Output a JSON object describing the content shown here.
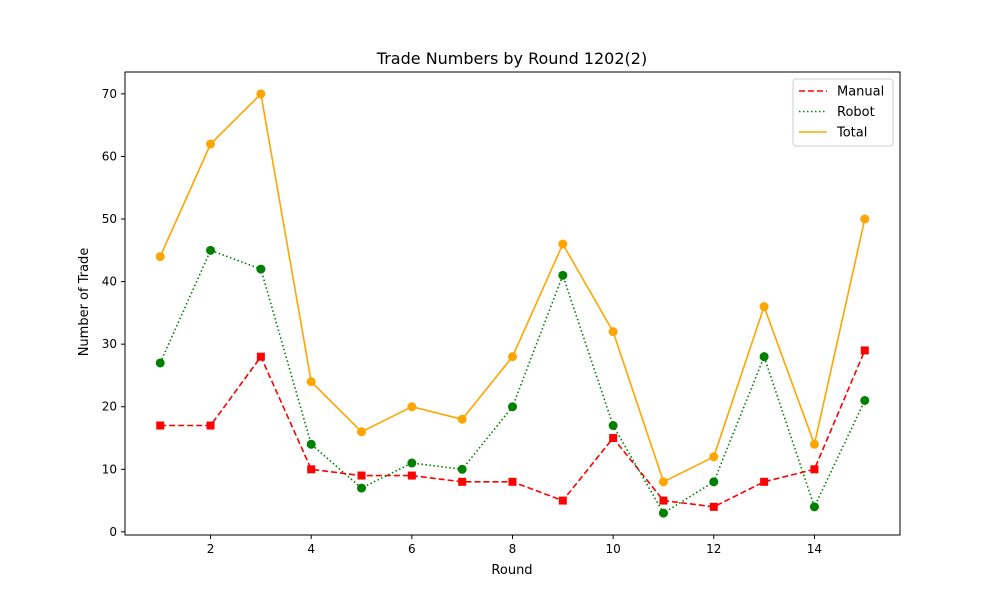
{
  "chart_data": {
    "type": "line",
    "title": "Trade Numbers by Round 1202(2)",
    "xlabel": "Round",
    "ylabel": "Number of Trade",
    "x": [
      1,
      2,
      3,
      4,
      5,
      6,
      7,
      8,
      9,
      10,
      11,
      12,
      13,
      14,
      15
    ],
    "xlim": [
      0.3,
      15.7
    ],
    "ylim": [
      -0.5,
      73.5
    ],
    "xticks": [
      2,
      4,
      6,
      8,
      10,
      12,
      14
    ],
    "yticks": [
      0,
      10,
      20,
      30,
      40,
      50,
      60,
      70
    ],
    "grid": false,
    "legend_position": "top-right",
    "series": [
      {
        "name": "Manual",
        "color": "#ff0000",
        "line_style": "dashed",
        "marker": "square",
        "values": [
          17,
          17,
          28,
          10,
          9,
          9,
          8,
          8,
          5,
          15,
          5,
          4,
          8,
          10,
          29
        ]
      },
      {
        "name": "Robot",
        "color": "#008000",
        "line_style": "dotted",
        "marker": "circle",
        "values": [
          27,
          45,
          42,
          14,
          7,
          11,
          10,
          20,
          41,
          17,
          3,
          8,
          28,
          4,
          21
        ]
      },
      {
        "name": "Total",
        "color": "#ffa500",
        "line_style": "solid",
        "marker": "circle",
        "values": [
          44,
          62,
          70,
          24,
          16,
          20,
          18,
          28,
          46,
          32,
          8,
          12,
          36,
          14,
          50
        ]
      }
    ]
  }
}
